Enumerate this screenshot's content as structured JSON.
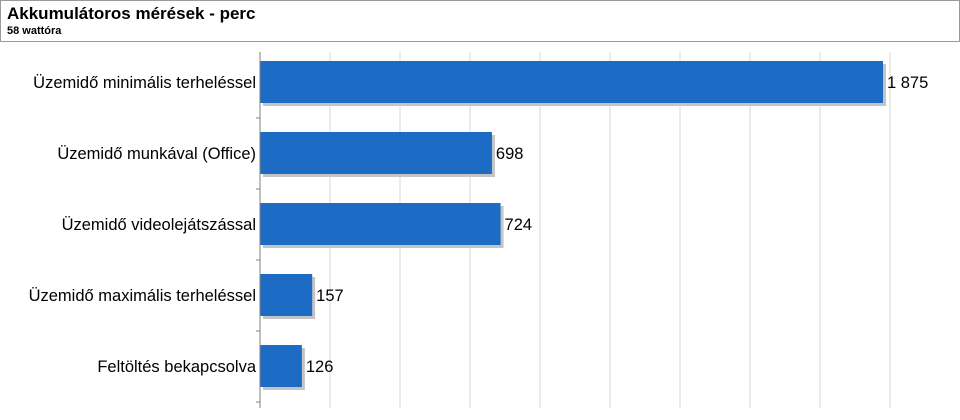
{
  "header": {
    "title": "Akkumulátoros mérések - perc",
    "subtitle": "58 wattóra"
  },
  "chart_data": {
    "type": "bar",
    "orientation": "horizontal",
    "title": "Akkumulátoros mérések - perc",
    "subtitle": "58 wattóra",
    "categories": [
      "Üzemidő minimális terheléssel",
      "Üzemidő munkával (Office)",
      "Üzemidő videolejátszással",
      "Üzemidő maximális terheléssel",
      "Feltöltés bekapcsolva"
    ],
    "values": [
      1875,
      698,
      724,
      157,
      126
    ],
    "value_labels": [
      "1 875",
      "698",
      "724",
      "157",
      "126"
    ],
    "xlim": [
      0,
      2100
    ],
    "grid": true,
    "legend": "none",
    "colors": {
      "bar": "#1c6bc4",
      "bar_shadow": "#c4c4c4",
      "grid": "#d9d9d9",
      "axis": "#808080"
    }
  }
}
